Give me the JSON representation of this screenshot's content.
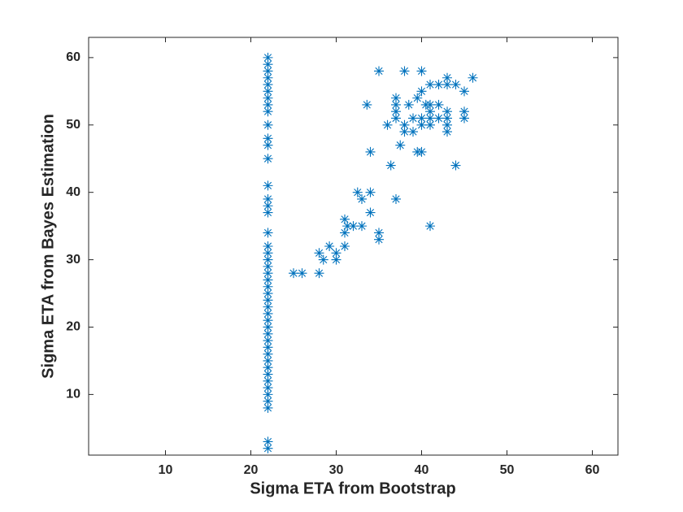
{
  "chart_data": {
    "type": "scatter",
    "xlabel": "Sigma ETA from Bootstrap",
    "ylabel": "Sigma ETA from Bayes Estimation",
    "color": "#0072bd",
    "xlim": [
      1,
      63
    ],
    "ylim": [
      1,
      63
    ],
    "xticks": [
      10,
      20,
      30,
      40,
      50,
      60
    ],
    "yticks": [
      10,
      20,
      30,
      40,
      50,
      60
    ],
    "x": [
      22,
      22,
      22,
      22,
      22,
      22,
      22,
      22,
      22,
      22,
      22,
      22,
      22,
      22,
      22,
      22,
      22,
      22,
      22,
      22,
      22,
      22,
      22,
      22,
      22,
      22,
      22,
      22,
      22,
      22,
      22,
      22,
      22,
      22,
      22,
      22,
      22,
      22,
      22,
      22,
      22,
      22,
      22,
      22,
      22,
      25,
      26,
      28,
      28,
      28.5,
      29.2,
      30,
      30,
      31,
      31,
      31,
      31.3,
      32,
      33,
      32.5,
      33,
      34,
      34,
      35,
      35,
      33.6,
      34,
      35,
      36,
      36.4,
      37,
      37,
      37,
      37,
      37,
      37.5,
      38,
      38,
      38,
      38.5,
      39,
      39,
      39.5,
      40,
      39.5,
      40,
      40,
      40,
      40,
      40.5,
      41,
      41,
      41,
      41,
      41,
      41,
      42,
      42,
      42,
      43,
      43,
      43,
      43,
      43,
      43,
      44,
      44,
      45,
      45,
      45,
      46
    ],
    "values": [
      60,
      59,
      58,
      57,
      56,
      55,
      54,
      53,
      52,
      50,
      48,
      47,
      45,
      41,
      39,
      38,
      37,
      34,
      32,
      31,
      30,
      29,
      28,
      27,
      26,
      25,
      24,
      23,
      22,
      21,
      20,
      19,
      18,
      17,
      16,
      15,
      14,
      13,
      12,
      11,
      10,
      9,
      8,
      3,
      2,
      28,
      28,
      31,
      28,
      30,
      32,
      31,
      30,
      32,
      34,
      36,
      35,
      35,
      35,
      40,
      39,
      40,
      37,
      34,
      33,
      53,
      46,
      58,
      50,
      44,
      39,
      54,
      53,
      52,
      51,
      47,
      58,
      50,
      49,
      53,
      49,
      51,
      54,
      55,
      46,
      46,
      58,
      51,
      50,
      53,
      56,
      51,
      50,
      52,
      35,
      53,
      56,
      53,
      51,
      57,
      56,
      52,
      51,
      50,
      49,
      56,
      44,
      55,
      52,
      51,
      57
    ]
  }
}
